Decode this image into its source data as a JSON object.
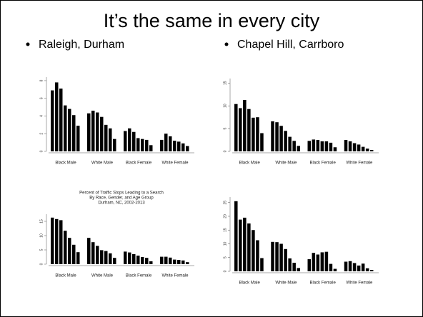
{
  "slide": {
    "title": "It’s the same in every city",
    "bullets": [
      "Raleigh, Durham",
      "Chapel Hill, Carrboro"
    ]
  },
  "chart_data": [
    {
      "type": "bar",
      "color": "#000000",
      "groups": [
        "Black Male",
        "White Male",
        "Black Female",
        "White Female"
      ],
      "values": [
        [
          6.9,
          7.8,
          7.1,
          5.2,
          4.8,
          4.1,
          2.9
        ],
        [
          4.3,
          4.6,
          4.4,
          3.9,
          3.0,
          2.6,
          1.4
        ],
        [
          2.3,
          2.6,
          2.2,
          1.5,
          1.4,
          1.3,
          0.7
        ],
        [
          1.3,
          2.0,
          1.7,
          1.2,
          1.1,
          0.9,
          0.6
        ]
      ],
      "ylim": [
        0,
        8.4
      ],
      "yticks": [
        0,
        2,
        4,
        6,
        8
      ]
    },
    {
      "type": "bar",
      "color": "#000000",
      "groups": [
        "Black Male",
        "White Male",
        "Black Female",
        "White Female"
      ],
      "values": [
        [
          10.4,
          9.5,
          11.3,
          9.3,
          7.4,
          7.5,
          4.0
        ],
        [
          6.6,
          6.4,
          5.6,
          4.5,
          3.2,
          2.3,
          1.2
        ],
        [
          2.3,
          2.6,
          2.5,
          2.2,
          2.2,
          1.9,
          0.9
        ],
        [
          2.5,
          2.2,
          1.8,
          1.5,
          1.0,
          0.6,
          0.3
        ]
      ],
      "ylim": [
        0,
        16
      ],
      "yticks": [
        0,
        5,
        10,
        15
      ]
    },
    {
      "type": "bar",
      "color": "#000000",
      "title": [
        "Percent of Traffic Stops Leading to a Search",
        "By Race, Gender, and Age Group",
        "Durham, NC, 2002-2013"
      ],
      "groups": [
        "Black Male",
        "White Male",
        "Black Female",
        "White Female"
      ],
      "values": [
        [
          16.3,
          15.8,
          15.4,
          11.7,
          9.2,
          6.8,
          4.2
        ],
        [
          9.2,
          7.7,
          6.4,
          4.9,
          4.6,
          3.8,
          2.2
        ],
        [
          4.4,
          4.1,
          3.5,
          3.0,
          2.5,
          2.2,
          1.0
        ],
        [
          2.6,
          2.6,
          2.3,
          1.6,
          1.5,
          1.3,
          0.7
        ]
      ],
      "ylim": [
        0,
        17.5
      ],
      "yticks": [
        0,
        5,
        10,
        15
      ]
    },
    {
      "type": "bar",
      "color": "#000000",
      "groups": [
        "Black Male",
        "White Male",
        "Black Female",
        "White Female"
      ],
      "values": [
        [
          25.5,
          18.8,
          19.5,
          17.4,
          15.0,
          11.3,
          4.8
        ],
        [
          10.7,
          10.6,
          10.0,
          8.1,
          4.7,
          3.1,
          1.2
        ],
        [
          4.4,
          6.7,
          6.1,
          6.9,
          7.1,
          2.7,
          0.9
        ],
        [
          3.5,
          3.7,
          3.0,
          2.1,
          2.8,
          1.1,
          0.5
        ]
      ],
      "ylim": [
        0,
        27
      ],
      "yticks": [
        0,
        5,
        10,
        15,
        20,
        25
      ]
    }
  ]
}
